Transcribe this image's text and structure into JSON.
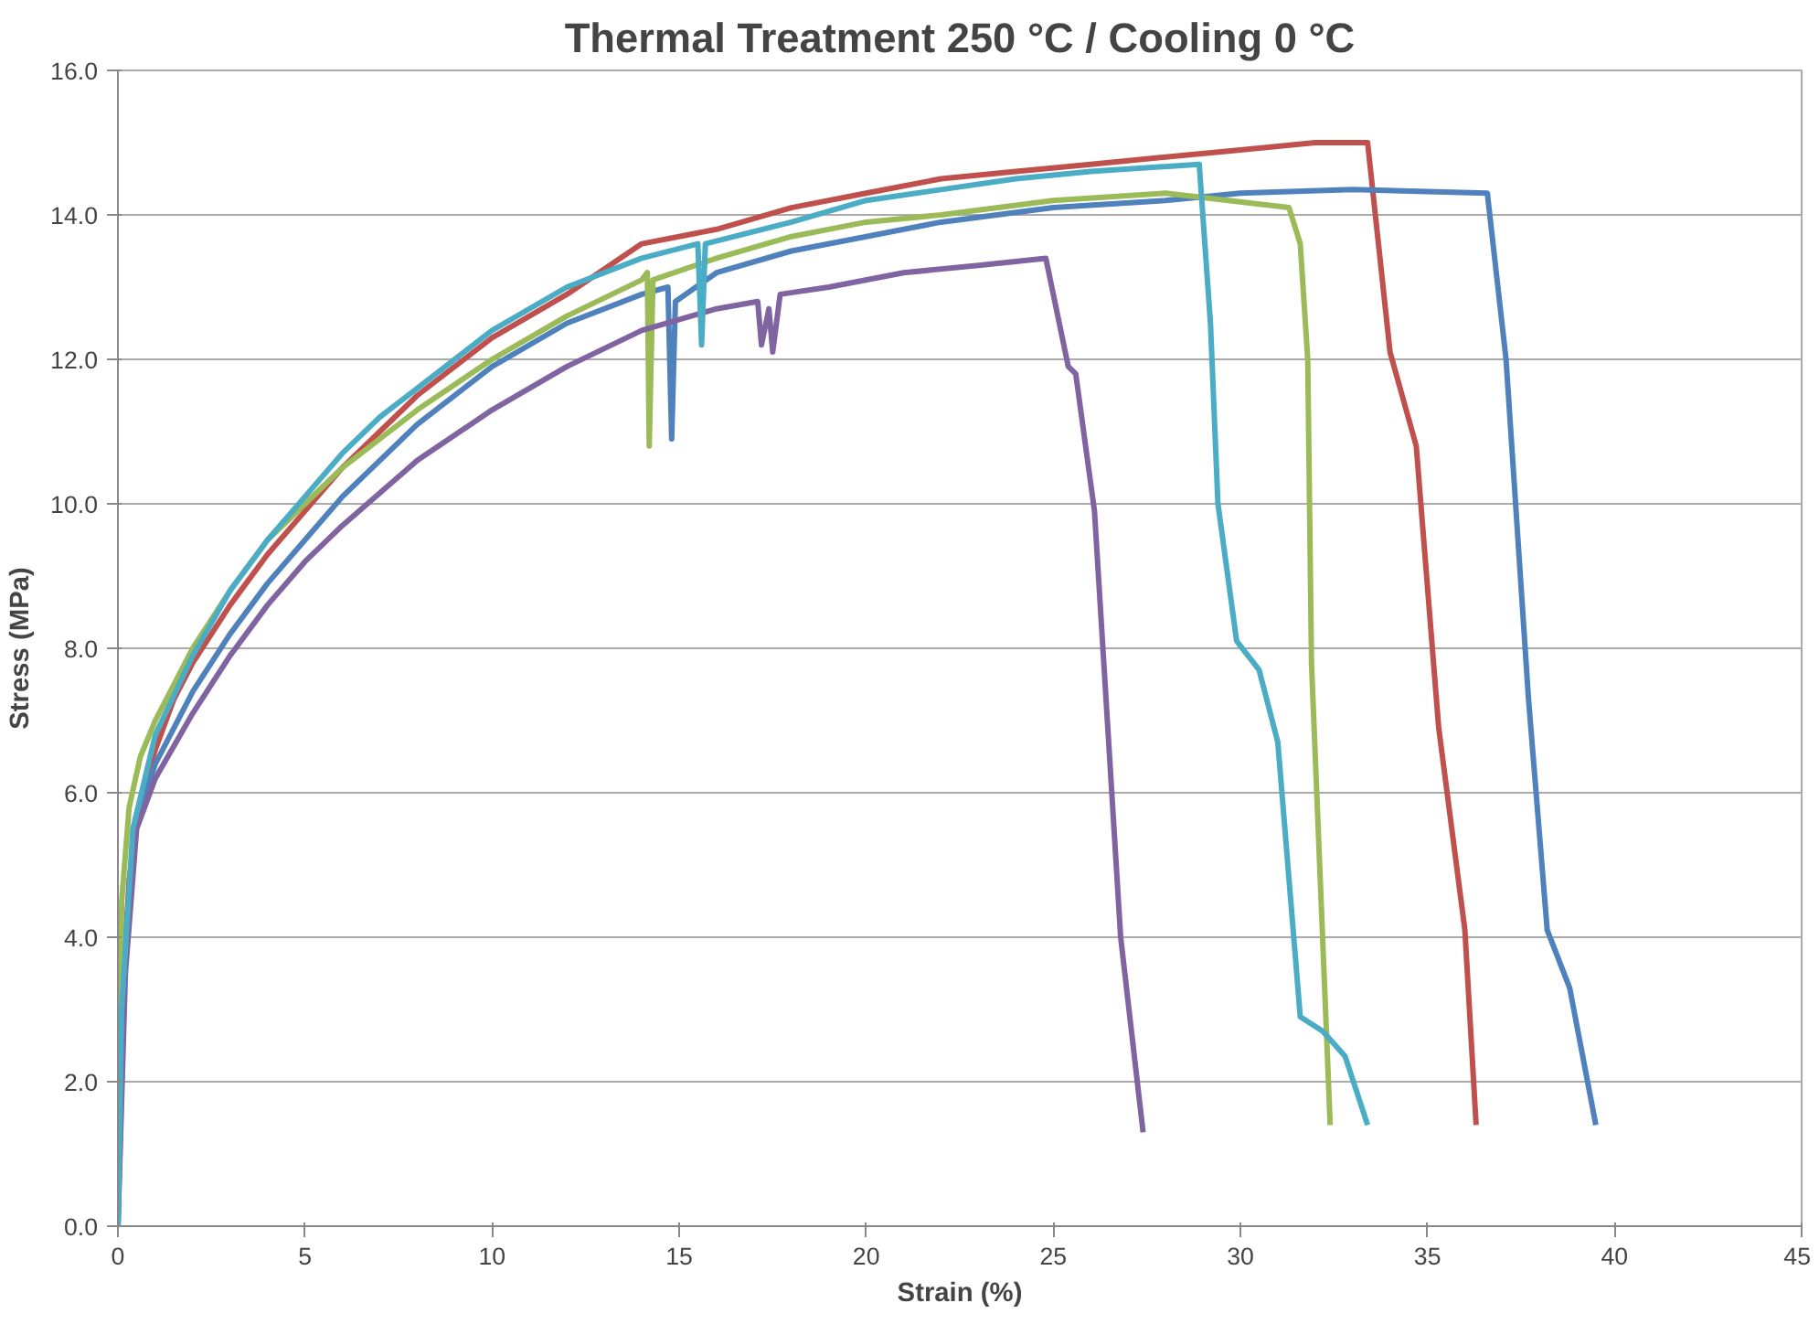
{
  "chart_data": {
    "type": "line",
    "title": "Thermal Treatment 250 °C / Cooling 0 °C",
    "xlabel": "Strain (%)",
    "ylabel": "Stress (MPa)",
    "xlim": [
      0,
      45
    ],
    "xticks": [
      0,
      5,
      10,
      15,
      20,
      25,
      30,
      35,
      40,
      45
    ],
    "ylim": [
      0,
      16
    ],
    "yticks": [
      {
        "value": 0,
        "label": "0.0"
      },
      {
        "value": 2,
        "label": "2.0"
      },
      {
        "value": 4,
        "label": "4.0"
      },
      {
        "value": 6,
        "label": "6.0"
      },
      {
        "value": 8,
        "label": "8.0"
      },
      {
        "value": 10,
        "label": "10.0"
      },
      {
        "value": 12,
        "label": "12.0"
      },
      {
        "value": 14,
        "label": "14.0"
      },
      {
        "value": 16,
        "label": "16.0"
      }
    ],
    "grid": "y",
    "marker": "none",
    "line_style": "solid",
    "series": [
      {
        "color": "#c0504d",
        "x": [
          0,
          0.1,
          0.3,
          0.6,
          1,
          1.5,
          2,
          3,
          4,
          5,
          6,
          7,
          8,
          9,
          10,
          12,
          14,
          16,
          18,
          20,
          22,
          24,
          26,
          28,
          30,
          32,
          33.4,
          34.0,
          34.7,
          35.3,
          36.0,
          36.3
        ],
        "values": [
          0,
          3,
          4.8,
          5.9,
          6.6,
          7.3,
          7.8,
          8.6,
          9.3,
          9.9,
          10.5,
          11,
          11.5,
          11.9,
          12.3,
          12.9,
          13.6,
          13.8,
          14.1,
          14.3,
          14.5,
          14.6,
          14.7,
          14.8,
          14.9,
          15.0,
          15.0,
          12.1,
          10.8,
          6.9,
          4.1,
          1.4
        ]
      },
      {
        "color": "#4f81bd",
        "x": [
          0,
          0.2,
          0.5,
          1,
          2,
          3,
          4,
          5,
          6,
          7,
          8,
          10,
          12,
          14,
          14.7,
          14.8,
          14.9,
          16,
          18,
          20,
          22,
          25,
          28,
          30,
          33,
          36.6,
          37.1,
          37.7,
          38.2,
          38.8,
          39.5
        ],
        "values": [
          0,
          4,
          5.6,
          6.4,
          7.4,
          8.2,
          8.9,
          9.5,
          10.1,
          10.6,
          11.1,
          11.9,
          12.5,
          12.9,
          13.0,
          10.9,
          12.8,
          13.2,
          13.5,
          13.7,
          13.9,
          14.1,
          14.2,
          14.3,
          14.35,
          14.3,
          12.0,
          7.3,
          4.1,
          3.3,
          1.4
        ]
      },
      {
        "color": "#9bbb59",
        "x": [
          0,
          0.1,
          0.3,
          0.6,
          1,
          2,
          3,
          4,
          5,
          6,
          8,
          10,
          12,
          14,
          14.15,
          14.2,
          14.3,
          16,
          18,
          20,
          22,
          25,
          28,
          31.3,
          31.6,
          31.8,
          31.9,
          32.4
        ],
        "values": [
          0,
          4.5,
          5.8,
          6.5,
          7,
          8,
          8.8,
          9.5,
          10,
          10.5,
          11.3,
          12,
          12.6,
          13.1,
          13.2,
          10.8,
          13.1,
          13.4,
          13.7,
          13.9,
          14.0,
          14.2,
          14.3,
          14.1,
          13.6,
          12.0,
          7.8,
          1.4
        ]
      },
      {
        "color": "#8064a2",
        "x": [
          0,
          0.2,
          0.5,
          1,
          2,
          3,
          4,
          5,
          6,
          8,
          10,
          12,
          14,
          16,
          17.1,
          17.2,
          17.4,
          17.5,
          17.7,
          19,
          21,
          23,
          24.8,
          25.4,
          25.6,
          26.1,
          26.8,
          27.4
        ],
        "values": [
          0,
          3.5,
          5.5,
          6.2,
          7.1,
          7.9,
          8.6,
          9.2,
          9.7,
          10.6,
          11.3,
          11.9,
          12.4,
          12.7,
          12.8,
          12.2,
          12.7,
          12.1,
          12.9,
          13.0,
          13.2,
          13.3,
          13.4,
          11.9,
          11.8,
          9.9,
          4.0,
          1.3
        ]
      },
      {
        "color": "#4bacc6",
        "x": [
          0,
          0.1,
          0.4,
          1,
          2,
          3,
          4,
          5,
          6,
          7,
          8,
          10,
          12,
          14,
          15.5,
          15.6,
          15.7,
          18,
          20,
          22,
          24,
          26,
          28.9,
          29.2,
          29.4,
          29.9,
          30.5,
          31.0,
          31.6,
          32.2,
          32.8,
          33.4
        ],
        "values": [
          0,
          3,
          5.5,
          6.8,
          7.9,
          8.8,
          9.5,
          10.1,
          10.7,
          11.2,
          11.6,
          12.4,
          13,
          13.4,
          13.6,
          12.2,
          13.6,
          13.9,
          14.2,
          14.35,
          14.5,
          14.6,
          14.7,
          12.5,
          10.0,
          8.1,
          7.7,
          6.7,
          2.9,
          2.7,
          2.35,
          1.4
        ]
      }
    ]
  }
}
